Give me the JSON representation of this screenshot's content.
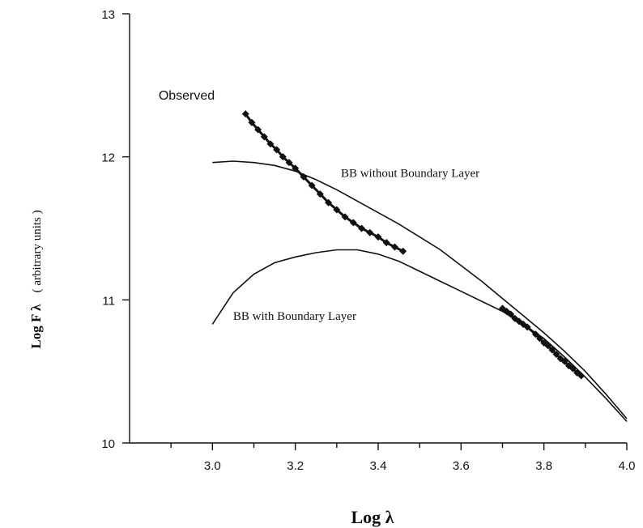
{
  "chart_data": {
    "type": "line",
    "title": "",
    "xlabel": "Log  λ",
    "ylabel": "Log F λ  ( arbitrary units )",
    "ylabel_main": "Log F λ",
    "ylabel_units": "( arbitrary units )",
    "xlim": [
      2.8,
      4.0
    ],
    "ylim": [
      10,
      13
    ],
    "x_ticks": [
      3.0,
      3.2,
      3.4,
      3.6,
      3.8,
      4.0
    ],
    "x_tick_labels": [
      "3.0",
      "3.2",
      "3.4",
      "3.6",
      "3.8",
      "4.0"
    ],
    "x_minor_ticks": [
      2.9,
      3.1,
      3.3,
      3.5,
      3.7,
      3.9
    ],
    "y_ticks": [
      10,
      11,
      12,
      13
    ],
    "y_tick_labels": [
      "10",
      "11",
      "12",
      "13"
    ],
    "grid": false,
    "series": [
      {
        "name": "Observed",
        "style": "markers",
        "x": [
          3.08,
          3.095,
          3.11,
          3.125,
          3.14,
          3.155,
          3.17,
          3.185,
          3.2,
          3.22,
          3.24,
          3.26,
          3.28,
          3.3,
          3.32,
          3.34,
          3.36,
          3.38,
          3.4,
          3.42,
          3.44,
          3.46,
          3.7,
          3.71,
          3.72,
          3.73,
          3.74,
          3.75,
          3.76,
          3.78,
          3.79,
          3.8,
          3.81,
          3.82,
          3.83,
          3.84,
          3.85,
          3.86,
          3.87,
          3.88,
          3.89
        ],
        "y": [
          12.3,
          12.24,
          12.19,
          12.14,
          12.09,
          12.05,
          12.0,
          11.96,
          11.92,
          11.86,
          11.8,
          11.74,
          11.68,
          11.63,
          11.58,
          11.54,
          11.5,
          11.47,
          11.44,
          11.4,
          11.37,
          11.34,
          10.94,
          10.92,
          10.9,
          10.87,
          10.85,
          10.83,
          10.81,
          10.76,
          10.73,
          10.7,
          10.68,
          10.65,
          10.62,
          10.59,
          10.57,
          10.54,
          10.52,
          10.49,
          10.47
        ]
      },
      {
        "name": "BB without  Boundary Layer",
        "style": "line",
        "x": [
          3.0,
          3.05,
          3.1,
          3.15,
          3.2,
          3.25,
          3.3,
          3.35,
          3.4,
          3.45,
          3.5,
          3.55,
          3.6,
          3.65,
          3.7,
          3.75,
          3.8,
          3.85,
          3.9,
          3.95,
          4.0
        ],
        "y": [
          11.96,
          11.97,
          11.96,
          11.94,
          11.9,
          11.84,
          11.77,
          11.69,
          11.61,
          11.53,
          11.44,
          11.35,
          11.24,
          11.13,
          11.01,
          10.89,
          10.77,
          10.64,
          10.5,
          10.34,
          10.17
        ]
      },
      {
        "name": "BB with Boundary Layer",
        "style": "line",
        "x": [
          3.0,
          3.05,
          3.1,
          3.15,
          3.2,
          3.25,
          3.3,
          3.35,
          3.4,
          3.45,
          3.5,
          3.55,
          3.6,
          3.65,
          3.7,
          3.75,
          3.8,
          3.85,
          3.9,
          3.95,
          4.0
        ],
        "y": [
          10.83,
          11.05,
          11.18,
          11.26,
          11.3,
          11.33,
          11.35,
          11.35,
          11.32,
          11.27,
          11.2,
          11.13,
          11.06,
          10.99,
          10.92,
          10.83,
          10.73,
          10.6,
          10.46,
          10.31,
          10.15
        ]
      }
    ],
    "annotations": [
      {
        "text": "Observed",
        "x": 2.87,
        "y": 12.4,
        "anchor": "start"
      },
      {
        "text": "BB without  Boundary Layer",
        "x": 3.31,
        "y": 11.86,
        "anchor": "start"
      },
      {
        "text": "BB with Boundary Layer",
        "x": 3.05,
        "y": 10.86,
        "anchor": "start"
      }
    ]
  }
}
